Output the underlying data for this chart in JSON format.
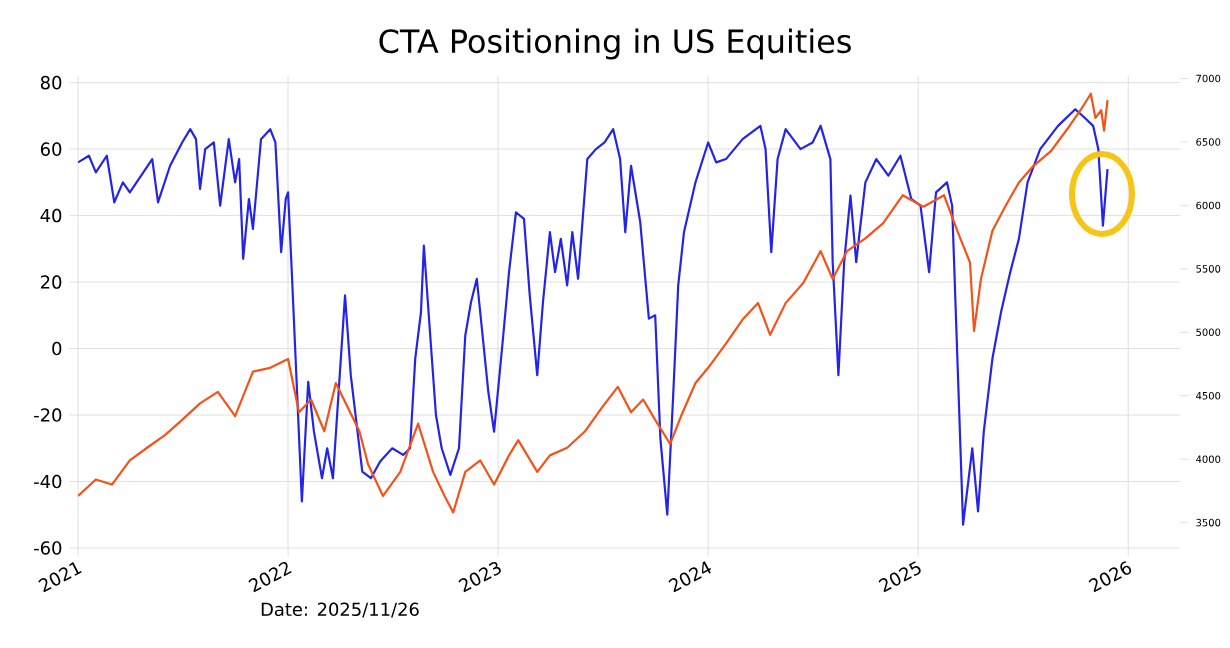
{
  "chart_data": {
    "type": "line",
    "title": "CTA Positioning in US Equities",
    "annotations": [
      "Date: 2025/11/26"
    ],
    "xlim": [
      "2021-01-01",
      "2026-04-01"
    ],
    "xticks": [
      "2021",
      "2022",
      "2023",
      "2024",
      "2025",
      "2026"
    ],
    "ylim": [
      -60,
      82
    ],
    "yticks": [
      -60,
      -40,
      -20,
      0,
      20,
      40,
      60,
      80
    ],
    "y2lim": [
      3300,
      7020
    ],
    "y2ticks": [
      3500,
      4000,
      4500,
      5000,
      5500,
      6000,
      6500,
      7000
    ],
    "grid": true,
    "series": [
      {
        "color": "#2424e8",
        "x": [
          "2021-01-01",
          "2021-01-20",
          "2021-02-01",
          "2021-02-20",
          "2021-03-05",
          "2021-03-20",
          "2021-04-01",
          "2021-05-10",
          "2021-05-20",
          "2021-06-10",
          "2021-07-01",
          "2021-07-15",
          "2021-07-25",
          "2021-08-01",
          "2021-08-10",
          "2021-08-25",
          "2021-09-05",
          "2021-09-20",
          "2021-10-01",
          "2021-10-08",
          "2021-10-15",
          "2021-10-25",
          "2021-11-01",
          "2021-11-15",
          "2021-12-01",
          "2021-12-10",
          "2021-12-20",
          "2021-12-28",
          "2022-01-01",
          "2022-01-07",
          "2022-01-25",
          "2022-02-05",
          "2022-02-15",
          "2022-03-01",
          "2022-03-10",
          "2022-03-20",
          "2022-04-10",
          "2022-04-20",
          "2022-05-10",
          "2022-05-25",
          "2022-06-10",
          "2022-07-01",
          "2022-07-20",
          "2022-08-01",
          "2022-08-10",
          "2022-08-20",
          "2022-08-25",
          "2022-09-05",
          "2022-09-15",
          "2022-09-25",
          "2022-10-10",
          "2022-10-25",
          "2022-11-05",
          "2022-11-15",
          "2022-11-25",
          "2022-12-05",
          "2022-12-15",
          "2022-12-25",
          "2023-01-10",
          "2023-01-20",
          "2023-02-01",
          "2023-02-15",
          "2023-02-25",
          "2023-03-10",
          "2023-03-20",
          "2023-04-01",
          "2023-04-10",
          "2023-04-20",
          "2023-05-01",
          "2023-05-10",
          "2023-05-20",
          "2023-06-05",
          "2023-06-20",
          "2023-07-05",
          "2023-07-20",
          "2023-08-01",
          "2023-08-10",
          "2023-08-20",
          "2023-09-05",
          "2023-09-20",
          "2023-10-01",
          "2023-10-10",
          "2023-10-22",
          "2023-11-01",
          "2023-11-10",
          "2023-11-20",
          "2023-12-10",
          "2024-01-01",
          "2024-01-15",
          "2024-02-01",
          "2024-03-01",
          "2024-04-01",
          "2024-04-10",
          "2024-04-20",
          "2024-05-01",
          "2024-05-15",
          "2024-06-10",
          "2024-07-01",
          "2024-07-15",
          "2024-08-01",
          "2024-08-05",
          "2024-08-15",
          "2024-08-25",
          "2024-09-05",
          "2024-09-15",
          "2024-10-01",
          "2024-10-20",
          "2024-11-10",
          "2024-12-01",
          "2024-12-20",
          "2025-01-05",
          "2025-01-20",
          "2025-02-01",
          "2025-02-20",
          "2025-03-01",
          "2025-03-20",
          "2025-04-05",
          "2025-04-15",
          "2025-04-25",
          "2025-05-10",
          "2025-05-25",
          "2025-06-10",
          "2025-06-25",
          "2025-07-10",
          "2025-08-01",
          "2025-09-01",
          "2025-10-01",
          "2025-10-20",
          "2025-11-01",
          "2025-11-10",
          "2025-11-18",
          "2025-11-26"
        ],
        "values": [
          56,
          58,
          53,
          58,
          44,
          50,
          47,
          57,
          44,
          55,
          62,
          66,
          63,
          48,
          60,
          62,
          43,
          63,
          50,
          57,
          27,
          45,
          36,
          63,
          66,
          62,
          29,
          45,
          47,
          25,
          -46,
          -10,
          -25,
          -39,
          -30,
          -39,
          16,
          -8,
          -37,
          -39,
          -34,
          -30,
          -32,
          -30,
          -3,
          11,
          31,
          4,
          -20,
          -30,
          -38,
          -30,
          4,
          14,
          21,
          4,
          -13,
          -25,
          4,
          23,
          41,
          39,
          16,
          -8,
          14,
          35,
          23,
          33,
          19,
          35,
          21,
          57,
          60,
          62,
          66,
          57,
          35,
          55,
          38,
          9,
          10,
          -27,
          -50,
          -15,
          19,
          35,
          50,
          62,
          56,
          57,
          63,
          67,
          60,
          29,
          57,
          66,
          60,
          62,
          67,
          57,
          26,
          -8,
          26,
          46,
          26,
          50,
          57,
          52,
          58,
          45,
          43,
          23,
          47,
          50,
          43,
          -53,
          -30,
          -49,
          -25,
          -3,
          11,
          23,
          33,
          50,
          60,
          67,
          72,
          69,
          67,
          60,
          37,
          54
        ]
      },
      {
        "color": "#f5521a",
        "axis": "y2",
        "x": [
          "2021-01-01",
          "2021-02-01",
          "2021-03-01",
          "2021-04-01",
          "2021-05-01",
          "2021-06-01",
          "2021-07-01",
          "2021-08-01",
          "2021-09-01",
          "2021-10-01",
          "2021-11-01",
          "2021-12-01",
          "2022-01-01",
          "2022-01-20",
          "2022-02-10",
          "2022-03-05",
          "2022-03-25",
          "2022-05-05",
          "2022-05-20",
          "2022-06-15",
          "2022-07-15",
          "2022-08-15",
          "2022-09-10",
          "2022-09-30",
          "2022-10-15",
          "2022-11-05",
          "2022-12-01",
          "2022-12-25",
          "2023-01-20",
          "2023-02-05",
          "2023-03-10",
          "2023-04-01",
          "2023-05-01",
          "2023-06-01",
          "2023-07-01",
          "2023-07-28",
          "2023-08-20",
          "2023-09-10",
          "2023-10-01",
          "2023-10-27",
          "2023-11-15",
          "2023-12-10",
          "2024-01-01",
          "2024-02-01",
          "2024-03-01",
          "2024-03-28",
          "2024-04-18",
          "2024-05-15",
          "2024-06-15",
          "2024-07-15",
          "2024-08-05",
          "2024-08-30",
          "2024-10-01",
          "2024-11-01",
          "2024-12-05",
          "2025-01-10",
          "2025-02-15",
          "2025-03-10",
          "2025-04-01",
          "2025-04-08",
          "2025-04-20",
          "2025-05-10",
          "2025-06-01",
          "2025-06-25",
          "2025-07-20",
          "2025-08-20",
          "2025-09-20",
          "2025-10-10",
          "2025-10-28",
          "2025-11-05",
          "2025-11-15",
          "2025-11-20",
          "2025-11-26"
        ],
        "values": [
          3710,
          3840,
          3800,
          3990,
          4090,
          4190,
          4310,
          4440,
          4530,
          4340,
          4690,
          4720,
          4790,
          4370,
          4470,
          4220,
          4600,
          4220,
          3960,
          3710,
          3900,
          4280,
          3900,
          3710,
          3580,
          3900,
          3990,
          3800,
          4030,
          4150,
          3900,
          4030,
          4090,
          4220,
          4410,
          4570,
          4370,
          4470,
          4310,
          4120,
          4340,
          4600,
          4720,
          4910,
          5100,
          5230,
          4980,
          5230,
          5390,
          5640,
          5420,
          5640,
          5740,
          5860,
          6080,
          5990,
          6080,
          5800,
          5550,
          5010,
          5420,
          5800,
          5990,
          6180,
          6310,
          6430,
          6620,
          6750,
          6880,
          6690,
          6750,
          6590,
          6830
        ]
      }
    ]
  }
}
